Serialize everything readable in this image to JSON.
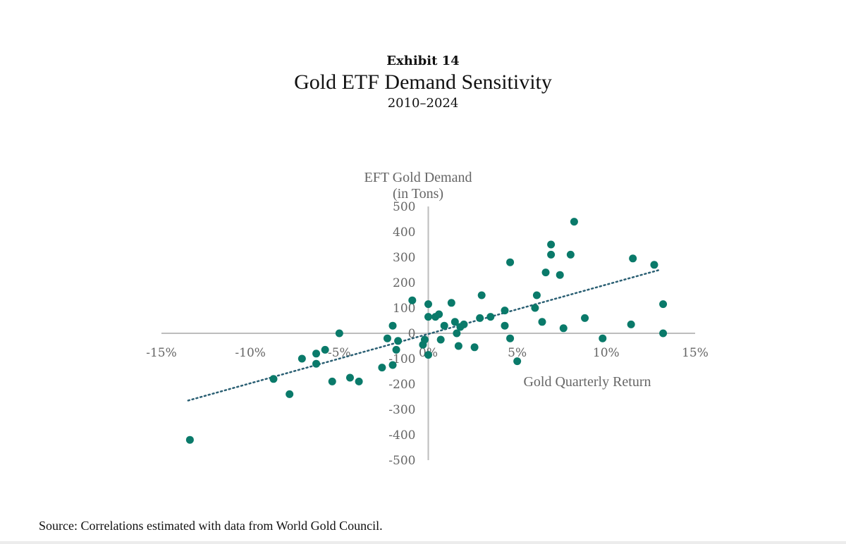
{
  "header": {
    "exhibit": "Exhibit 14",
    "title": "Gold ETF Demand Sensitivity",
    "subtitle": "2010–2024"
  },
  "source": "Source: Correlations estimated with data from World Gold Council.",
  "colors": {
    "point": "#0a7a6a",
    "trend": "#2a5f73",
    "axis": "#bdbdbd",
    "text": "#666666"
  },
  "chart_data": {
    "type": "scatter",
    "xlabel": "Gold Quarterly Return",
    "ylabel_lines": [
      "EFT Gold Demand",
      "(in Tons)"
    ],
    "xlim": [
      -0.15,
      0.15
    ],
    "ylim": [
      -500,
      500
    ],
    "x_ticks": [
      {
        "value": -0.15,
        "label": "-15%"
      },
      {
        "value": -0.1,
        "label": "-10%"
      },
      {
        "value": -0.05,
        "label": "-5%"
      },
      {
        "value": 0.0,
        "label": "0%"
      },
      {
        "value": 0.05,
        "label": "5%"
      },
      {
        "value": 0.1,
        "label": "10%"
      },
      {
        "value": 0.15,
        "label": "15%"
      }
    ],
    "y_ticks": [
      {
        "value": 500,
        "label": "500"
      },
      {
        "value": 400,
        "label": "400"
      },
      {
        "value": 300,
        "label": "300"
      },
      {
        "value": 200,
        "label": "200"
      },
      {
        "value": 100,
        "label": "100"
      },
      {
        "value": 0,
        "label": "0"
      },
      {
        "value": -100,
        "label": "-100"
      },
      {
        "value": -200,
        "label": "-200"
      },
      {
        "value": -300,
        "label": "-300"
      },
      {
        "value": -400,
        "label": "-400"
      },
      {
        "value": -500,
        "label": "-500"
      }
    ],
    "trendline": {
      "style": "dotted",
      "from": [
        -0.135,
        -265
      ],
      "to": [
        0.13,
        250
      ]
    },
    "points": [
      {
        "x": -0.134,
        "y": -420
      },
      {
        "x": -0.087,
        "y": -180
      },
      {
        "x": -0.078,
        "y": -240
      },
      {
        "x": -0.071,
        "y": -100
      },
      {
        "x": -0.063,
        "y": -80
      },
      {
        "x": -0.063,
        "y": -120
      },
      {
        "x": -0.058,
        "y": -65
      },
      {
        "x": -0.054,
        "y": -190
      },
      {
        "x": -0.05,
        "y": 0
      },
      {
        "x": -0.044,
        "y": -175
      },
      {
        "x": -0.039,
        "y": -190
      },
      {
        "x": -0.026,
        "y": -135
      },
      {
        "x": -0.023,
        "y": -20
      },
      {
        "x": -0.02,
        "y": -125
      },
      {
        "x": -0.02,
        "y": 30
      },
      {
        "x": -0.018,
        "y": -65
      },
      {
        "x": -0.017,
        "y": -30
      },
      {
        "x": -0.009,
        "y": 130
      },
      {
        "x": -0.003,
        "y": -45
      },
      {
        "x": -0.002,
        "y": -25
      },
      {
        "x": 0.0,
        "y": -85
      },
      {
        "x": 0.0,
        "y": 65
      },
      {
        "x": 0.0,
        "y": 115
      },
      {
        "x": 0.004,
        "y": 65
      },
      {
        "x": 0.006,
        "y": 75
      },
      {
        "x": 0.007,
        "y": -25
      },
      {
        "x": 0.009,
        "y": 30
      },
      {
        "x": 0.013,
        "y": 120
      },
      {
        "x": 0.015,
        "y": 45
      },
      {
        "x": 0.016,
        "y": 0
      },
      {
        "x": 0.017,
        "y": -50
      },
      {
        "x": 0.018,
        "y": 25
      },
      {
        "x": 0.02,
        "y": 35
      },
      {
        "x": 0.026,
        "y": -55
      },
      {
        "x": 0.029,
        "y": 60
      },
      {
        "x": 0.03,
        "y": 150
      },
      {
        "x": 0.035,
        "y": 65
      },
      {
        "x": 0.043,
        "y": 30
      },
      {
        "x": 0.043,
        "y": 90
      },
      {
        "x": 0.046,
        "y": -20
      },
      {
        "x": 0.046,
        "y": 280
      },
      {
        "x": 0.05,
        "y": -110
      },
      {
        "x": 0.06,
        "y": 100
      },
      {
        "x": 0.061,
        "y": 150
      },
      {
        "x": 0.064,
        "y": 45
      },
      {
        "x": 0.066,
        "y": 240
      },
      {
        "x": 0.069,
        "y": 350
      },
      {
        "x": 0.069,
        "y": 310
      },
      {
        "x": 0.074,
        "y": 230
      },
      {
        "x": 0.076,
        "y": 20
      },
      {
        "x": 0.08,
        "y": 310
      },
      {
        "x": 0.082,
        "y": 440
      },
      {
        "x": 0.088,
        "y": 60
      },
      {
        "x": 0.098,
        "y": -20
      },
      {
        "x": 0.114,
        "y": 35
      },
      {
        "x": 0.115,
        "y": 295
      },
      {
        "x": 0.127,
        "y": 270
      },
      {
        "x": 0.132,
        "y": 115
      },
      {
        "x": 0.132,
        "y": 0
      }
    ]
  }
}
